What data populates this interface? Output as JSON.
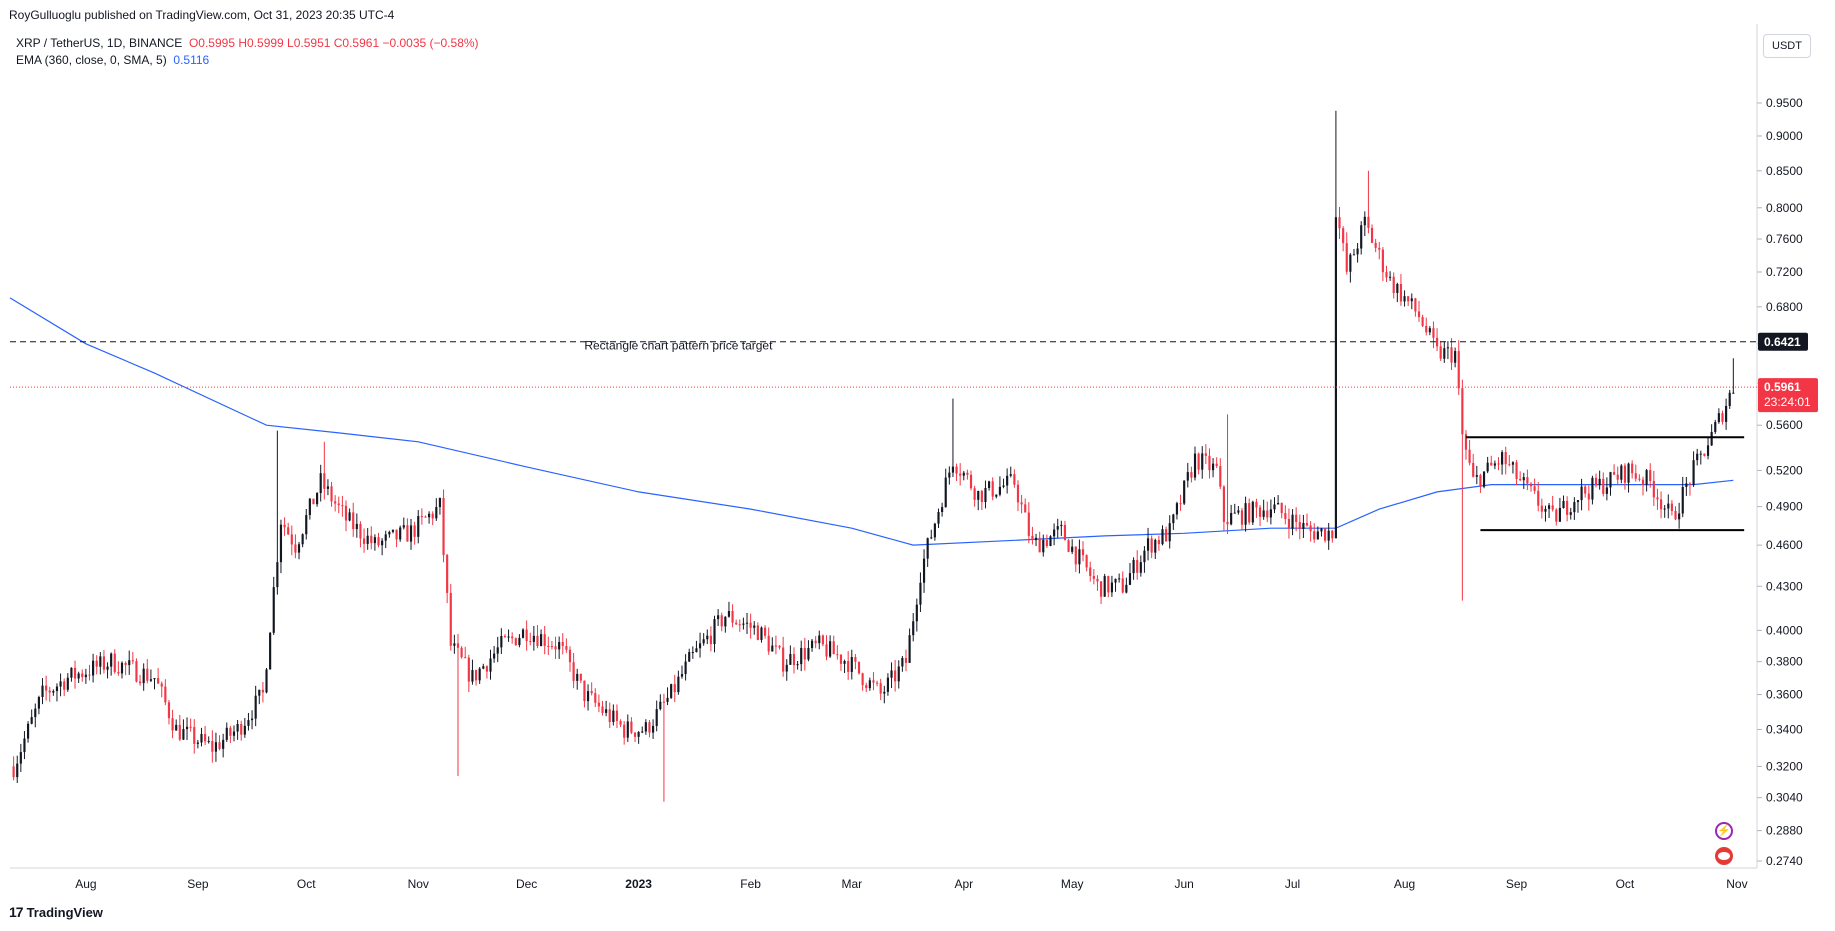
{
  "header": {
    "text": "RoyGulluoglu published on TradingView.com, Oct 31, 2023 20:35 UTC-4"
  },
  "legend": {
    "symbol": "XRP / TetherUS, 1D, BINANCE",
    "ohlc": "O0.5995  H0.5999  L0.5951  C0.5961  −0.0035 (−0.58%)",
    "ema_label": "EMA (360, close, 0, SMA, 5)",
    "ema_value": "0.5116"
  },
  "unit_button": "USDT",
  "footer": {
    "brand": "TradingView",
    "logo": "17"
  },
  "icons": {
    "flash": "flash-icon",
    "flag": "us-flag-icon"
  },
  "colors": {
    "up": "#131722",
    "down": "#f23645",
    "ema": "#2962ff",
    "target": "#131722",
    "last_price": "#f23645"
  },
  "chart_data": {
    "type": "candlestick",
    "symbol": "XRP / TetherUS",
    "interval": "1D",
    "scale": "log",
    "y_ticks": [
      0.274,
      0.288,
      0.304,
      0.32,
      0.34,
      0.36,
      0.38,
      0.4,
      0.43,
      0.46,
      0.49,
      0.52,
      0.56,
      0.6,
      0.64,
      0.68,
      0.72,
      0.76,
      0.8,
      0.85,
      0.9,
      0.95
    ],
    "y_tick_labels": [
      "0.2740",
      "0.2880",
      "0.3040",
      "0.3200",
      "0.3400",
      "0.3600",
      "0.3800",
      "0.4000",
      "0.4300",
      "0.4600",
      "0.4900",
      "0.5200",
      "0.5600",
      "0.6000",
      "0.6400",
      "0.6800",
      "0.7200",
      "0.7600",
      "0.8000",
      "0.8500",
      "0.9000",
      "0.9500"
    ],
    "x_ticks": [
      {
        "label": "Aug",
        "date": "2022-08-01",
        "bold": false
      },
      {
        "label": "Sep",
        "date": "2022-09-01",
        "bold": false
      },
      {
        "label": "Oct",
        "date": "2022-10-01",
        "bold": false
      },
      {
        "label": "Nov",
        "date": "2022-11-01",
        "bold": false
      },
      {
        "label": "Dec",
        "date": "2022-12-01",
        "bold": false
      },
      {
        "label": "2023",
        "date": "2023-01-01",
        "bold": true
      },
      {
        "label": "Feb",
        "date": "2023-02-01",
        "bold": false
      },
      {
        "label": "Mar",
        "date": "2023-03-01",
        "bold": false
      },
      {
        "label": "Apr",
        "date": "2023-04-01",
        "bold": false
      },
      {
        "label": "May",
        "date": "2023-05-01",
        "bold": false
      },
      {
        "label": "Jun",
        "date": "2023-06-01",
        "bold": false
      },
      {
        "label": "Jul",
        "date": "2023-07-01",
        "bold": false
      },
      {
        "label": "Aug",
        "date": "2023-08-01",
        "bold": false
      },
      {
        "label": "Sep",
        "date": "2023-09-01",
        "bold": false
      },
      {
        "label": "Oct",
        "date": "2023-10-01",
        "bold": false
      },
      {
        "label": "Nov",
        "date": "2023-11-01",
        "bold": false
      }
    ],
    "date_range": [
      "2022-07-11",
      "2023-11-06"
    ],
    "price_path": [
      [
        "2022-07-12",
        0.32
      ],
      [
        "2022-07-20",
        0.36
      ],
      [
        "2022-07-27",
        0.37
      ],
      [
        "2022-08-08",
        0.38
      ],
      [
        "2022-08-20",
        0.37
      ],
      [
        "2022-08-26",
        0.34
      ],
      [
        "2022-09-05",
        0.33
      ],
      [
        "2022-09-12",
        0.34
      ],
      [
        "2022-09-19",
        0.36
      ],
      [
        "2022-09-24",
        0.48
      ],
      [
        "2022-09-28",
        0.46
      ],
      [
        "2022-10-05",
        0.51
      ],
      [
        "2022-10-12",
        0.48
      ],
      [
        "2022-10-20",
        0.46
      ],
      [
        "2022-10-30",
        0.47
      ],
      [
        "2022-11-07",
        0.49
      ],
      [
        "2022-11-10",
        0.39
      ],
      [
        "2022-11-16",
        0.37
      ],
      [
        "2022-11-24",
        0.39
      ],
      [
        "2022-12-01",
        0.4
      ],
      [
        "2022-12-10",
        0.39
      ],
      [
        "2022-12-17",
        0.36
      ],
      [
        "2022-12-28",
        0.34
      ],
      [
        "2023-01-03",
        0.34
      ],
      [
        "2023-01-10",
        0.36
      ],
      [
        "2023-01-15",
        0.38
      ],
      [
        "2023-01-25",
        0.41
      ],
      [
        "2023-02-03",
        0.4
      ],
      [
        "2023-02-10",
        0.38
      ],
      [
        "2023-02-20",
        0.39
      ],
      [
        "2023-02-28",
        0.38
      ],
      [
        "2023-03-09",
        0.36
      ],
      [
        "2023-03-16",
        0.38
      ],
      [
        "2023-03-20",
        0.44
      ],
      [
        "2023-03-29",
        0.53
      ],
      [
        "2023-04-05",
        0.5
      ],
      [
        "2023-04-15",
        0.51
      ],
      [
        "2023-04-20",
        0.46
      ],
      [
        "2023-04-28",
        0.47
      ],
      [
        "2023-05-08",
        0.43
      ],
      [
        "2023-05-15",
        0.43
      ],
      [
        "2023-05-22",
        0.46
      ],
      [
        "2023-05-28",
        0.47
      ],
      [
        "2023-06-04",
        0.53
      ],
      [
        "2023-06-10",
        0.52
      ],
      [
        "2023-06-12",
        0.48
      ],
      [
        "2023-06-25",
        0.49
      ],
      [
        "2023-07-06",
        0.47
      ],
      [
        "2023-07-12",
        0.47
      ],
      [
        "2023-07-13",
        0.8
      ],
      [
        "2023-07-16",
        0.72
      ],
      [
        "2023-07-21",
        0.78
      ],
      [
        "2023-07-28",
        0.71
      ],
      [
        "2023-08-05",
        0.67
      ],
      [
        "2023-08-10",
        0.63
      ],
      [
        "2023-08-15",
        0.63
      ],
      [
        "2023-08-17",
        0.55
      ],
      [
        "2023-08-20",
        0.51
      ],
      [
        "2023-08-28",
        0.53
      ],
      [
        "2023-09-05",
        0.5
      ],
      [
        "2023-09-11",
        0.48
      ],
      [
        "2023-09-18",
        0.5
      ],
      [
        "2023-09-26",
        0.51
      ],
      [
        "2023-10-02",
        0.52
      ],
      [
        "2023-10-08",
        0.51
      ],
      [
        "2023-10-14",
        0.48
      ],
      [
        "2023-10-20",
        0.52
      ],
      [
        "2023-10-25",
        0.55
      ],
      [
        "2023-10-31",
        0.596
      ]
    ],
    "spikes": [
      {
        "date": "2022-09-23",
        "high": 0.555
      },
      {
        "date": "2022-10-06",
        "high": 0.545
      },
      {
        "date": "2022-11-12",
        "low": 0.315
      },
      {
        "date": "2023-01-08",
        "low": 0.302
      },
      {
        "date": "2023-03-29",
        "high": 0.585
      },
      {
        "date": "2023-06-13",
        "high": 0.57
      },
      {
        "date": "2023-07-13",
        "high": 0.938,
        "low": 0.468
      },
      {
        "date": "2023-07-22",
        "high": 0.85
      },
      {
        "date": "2023-08-17",
        "low": 0.42
      },
      {
        "date": "2023-10-31",
        "high": 0.625
      }
    ],
    "ema_path": [
      [
        "2022-07-11",
        0.69
      ],
      [
        "2022-08-01",
        0.64
      ],
      [
        "2022-08-20",
        0.61
      ],
      [
        "2022-09-20",
        0.56
      ],
      [
        "2022-10-10",
        0.553
      ],
      [
        "2022-11-01",
        0.545
      ],
      [
        "2022-12-01",
        0.523
      ],
      [
        "2023-01-01",
        0.502
      ],
      [
        "2023-02-01",
        0.488
      ],
      [
        "2023-03-01",
        0.473
      ],
      [
        "2023-03-18",
        0.46
      ],
      [
        "2023-04-10",
        0.463
      ],
      [
        "2023-05-10",
        0.467
      ],
      [
        "2023-06-01",
        0.469
      ],
      [
        "2023-06-25",
        0.473
      ],
      [
        "2023-07-13",
        0.473
      ],
      [
        "2023-07-25",
        0.488
      ],
      [
        "2023-08-10",
        0.502
      ],
      [
        "2023-08-25",
        0.508
      ],
      [
        "2023-09-20",
        0.508
      ],
      [
        "2023-10-20",
        0.508
      ],
      [
        "2023-10-31",
        0.5116
      ]
    ],
    "horizontal_levels": [
      {
        "value": 0.6421,
        "style": "dashed",
        "label": "0.6421"
      },
      {
        "value": 0.5961,
        "style": "dotted",
        "label": "0.5961"
      }
    ],
    "rectangle_lines": [
      {
        "value": 0.549,
        "from": "2023-08-18",
        "to": "2023-11-03"
      },
      {
        "value": 0.4715,
        "from": "2023-08-22",
        "to": "2023-11-03"
      }
    ],
    "annotation": {
      "text": "Rectangle chart pattern price target",
      "date": "2023-01-12",
      "value": 0.634
    },
    "last_price": {
      "value": 0.5961,
      "label": "0.5961",
      "countdown": "23:24:01"
    }
  }
}
